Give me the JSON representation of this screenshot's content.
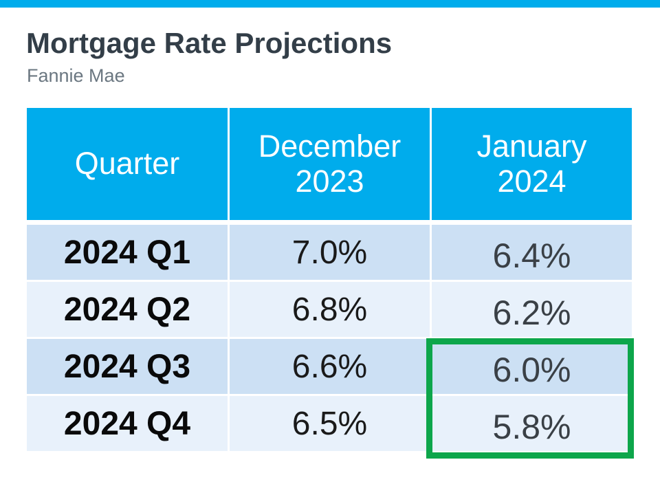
{
  "slide": {
    "title": "Mortgage Rate Projections",
    "subtitle": "Fannie Mae"
  },
  "chart_data": {
    "type": "table",
    "title": "Mortgage Rate Projections",
    "subtitle": "Fannie Mae",
    "columns": [
      "Quarter",
      "December 2023",
      "January 2024"
    ],
    "rows": [
      [
        "2024 Q1",
        "7.0%",
        "6.4%"
      ],
      [
        "2024 Q2",
        "6.8%",
        "6.2%"
      ],
      [
        "2024 Q3",
        "6.6%",
        "6.0%"
      ],
      [
        "2024 Q4",
        "6.5%",
        "5.8%"
      ]
    ],
    "highlight": {
      "column": "January 2024",
      "rows": [
        "2024 Q3",
        "2024 Q4"
      ],
      "values": [
        "6.0%",
        "5.8%"
      ],
      "style": "green outline box",
      "color": "#0DA64B"
    }
  },
  "colors": {
    "accent_cyan": "#00ACEC",
    "header_text": "#FFFFFF",
    "row_alt_dark": "#CCE0F4",
    "row_alt_light": "#E8F1FB",
    "highlight_green": "#0DA64B",
    "title_text": "#333E48",
    "subtitle_text": "#6B7781",
    "january_value_text": "#3A4046"
  }
}
